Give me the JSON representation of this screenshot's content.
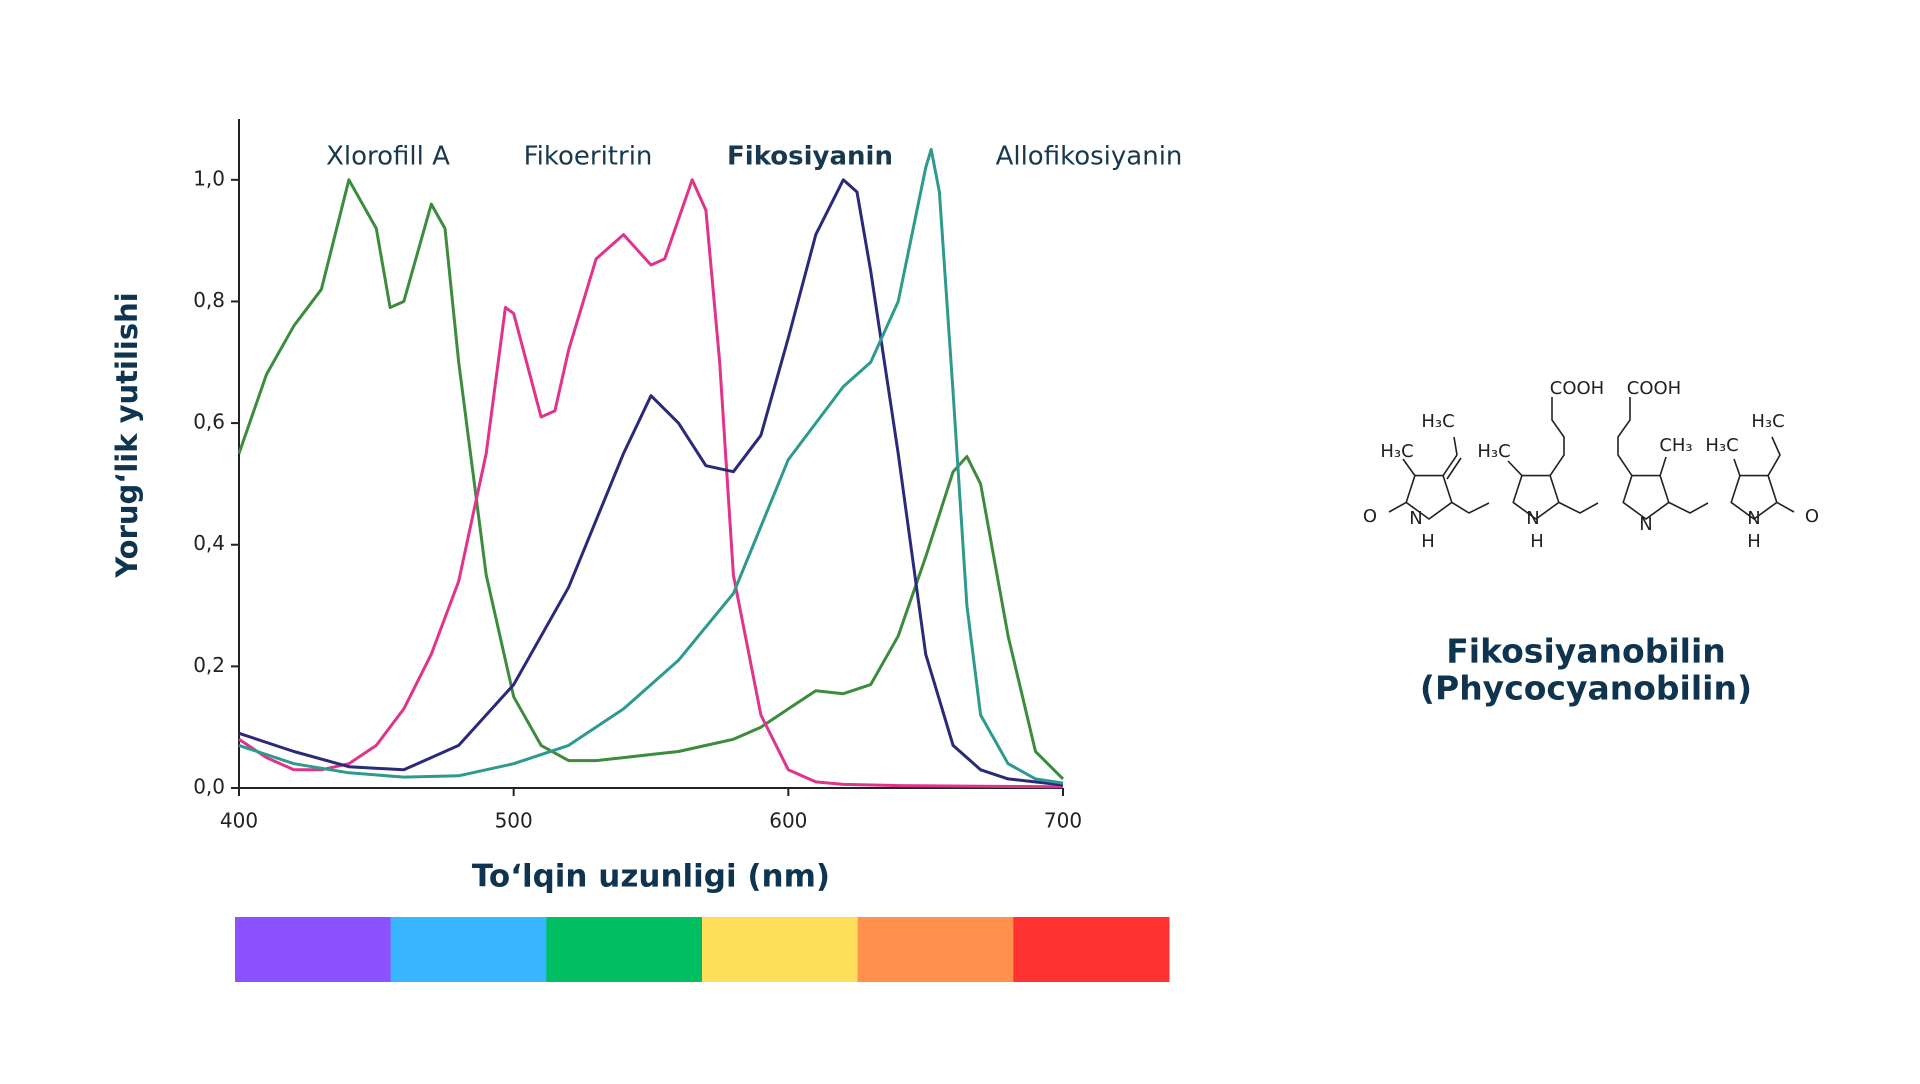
{
  "chart_data": {
    "type": "line",
    "x_label": "To‘lqin uzunligi (nm)",
    "y_label": "Yorug‘lik yutilishi",
    "xlim": [
      400,
      700
    ],
    "ylim": [
      0,
      1.1
    ],
    "xticks": [
      400,
      500,
      600,
      700
    ],
    "yticks": [
      {
        "value": 0,
        "label": "0,0"
      },
      {
        "value": 0.2,
        "label": "0,2"
      },
      {
        "value": 0.4,
        "label": "0,4"
      },
      {
        "value": 0.6,
        "label": "0,6"
      },
      {
        "value": 0.8,
        "label": "0,8"
      },
      {
        "value": 1.0,
        "label": "1,0"
      }
    ],
    "series": [
      {
        "name": "Xlorofill A",
        "color": "#3d8c3d",
        "bold": false,
        "x": [
          400,
          410,
          420,
          430,
          440,
          450,
          455,
          460,
          470,
          475,
          480,
          490,
          500,
          510,
          520,
          530,
          540,
          550,
          560,
          570,
          580,
          590,
          600,
          610,
          620,
          630,
          640,
          650,
          660,
          665,
          670,
          680,
          690,
          700
        ],
        "values": [
          0.55,
          0.68,
          0.76,
          0.82,
          1.0,
          0.92,
          0.79,
          0.8,
          0.96,
          0.92,
          0.7,
          0.35,
          0.15,
          0.07,
          0.045,
          0.045,
          0.05,
          0.055,
          0.06,
          0.07,
          0.08,
          0.1,
          0.13,
          0.16,
          0.155,
          0.17,
          0.25,
          0.38,
          0.52,
          0.545,
          0.5,
          0.25,
          0.06,
          0.015
        ]
      },
      {
        "name": "Fikoeritrin",
        "color": "#e0338a",
        "bold": false,
        "x": [
          400,
          410,
          420,
          430,
          440,
          450,
          460,
          470,
          480,
          490,
          497,
          500,
          510,
          515,
          520,
          530,
          540,
          550,
          555,
          565,
          570,
          575,
          580,
          590,
          600,
          610,
          620,
          640,
          700
        ],
        "values": [
          0.08,
          0.05,
          0.03,
          0.03,
          0.04,
          0.07,
          0.13,
          0.22,
          0.34,
          0.55,
          0.79,
          0.78,
          0.61,
          0.62,
          0.72,
          0.87,
          0.91,
          0.86,
          0.87,
          1.0,
          0.95,
          0.7,
          0.35,
          0.12,
          0.03,
          0.01,
          0.006,
          0.004,
          0.002
        ]
      },
      {
        "name": "Fikosiyanin",
        "color": "#2b2a7a",
        "bold": true,
        "x": [
          400,
          420,
          440,
          460,
          480,
          500,
          520,
          540,
          550,
          560,
          570,
          580,
          590,
          600,
          610,
          620,
          625,
          630,
          640,
          650,
          660,
          670,
          680,
          700
        ],
        "values": [
          0.09,
          0.06,
          0.035,
          0.03,
          0.07,
          0.17,
          0.33,
          0.55,
          0.645,
          0.6,
          0.53,
          0.52,
          0.58,
          0.74,
          0.91,
          1.0,
          0.98,
          0.85,
          0.55,
          0.22,
          0.07,
          0.03,
          0.015,
          0.005
        ]
      },
      {
        "name": "Allofikosiyanin",
        "color": "#2e9a8e",
        "bold": false,
        "x": [
          400,
          420,
          440,
          460,
          480,
          500,
          520,
          540,
          560,
          580,
          590,
          600,
          610,
          620,
          630,
          640,
          650,
          652,
          655,
          660,
          665,
          670,
          680,
          690,
          700
        ],
        "values": [
          0.07,
          0.04,
          0.025,
          0.018,
          0.02,
          0.04,
          0.07,
          0.13,
          0.21,
          0.32,
          0.43,
          0.54,
          0.6,
          0.66,
          0.7,
          0.8,
          1.02,
          1.05,
          0.98,
          0.65,
          0.3,
          0.12,
          0.04,
          0.015,
          0.008
        ]
      }
    ],
    "spectrum_colors": [
      "#8c52ff",
      "#38b6ff",
      "#00bf63",
      "#ffde59",
      "#ff914d",
      "#ff3131"
    ]
  },
  "molecule": {
    "labels": [
      "H₃C",
      "H₃C",
      "H₃C",
      "COOH",
      "COOH",
      "CH₃",
      "H₃C",
      "H₃C",
      "O",
      "N",
      "H",
      "N",
      "H",
      "N",
      "N",
      "H",
      "O"
    ],
    "name": "Fikosiyanobilin",
    "alt_name": "(Phycocyanobilin)"
  }
}
